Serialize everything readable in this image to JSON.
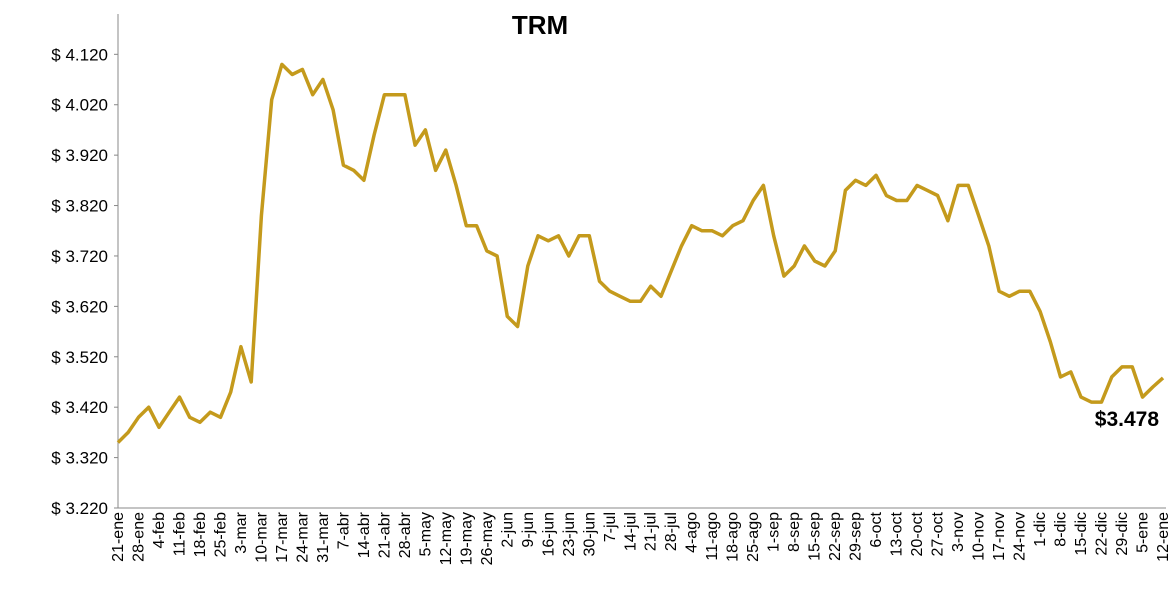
{
  "chart_data": {
    "type": "line",
    "title": "TRM",
    "annotation": "$3.478",
    "color": "#c49a1c",
    "categories": [
      "21-ene",
      null,
      "28-ene",
      null,
      "4-feb",
      null,
      "11-feb",
      null,
      "18-feb",
      null,
      "25-feb",
      null,
      "3-mar",
      null,
      "10-mar",
      null,
      "17-mar",
      null,
      "24-mar",
      null,
      "31-mar",
      null,
      "7-abr",
      null,
      "14-abr",
      null,
      "21-abr",
      null,
      "28-abr",
      null,
      "5-may",
      null,
      "12-may",
      null,
      "19-may",
      null,
      "26-may",
      null,
      "2-jun",
      null,
      "9-jun",
      null,
      "16-jun",
      null,
      "23-jun",
      null,
      "30-jun",
      null,
      "7-jul",
      null,
      "14-jul",
      null,
      "21-jul",
      null,
      "28-jul",
      null,
      "4-ago",
      null,
      "11-ago",
      null,
      "18-ago",
      null,
      "25-ago",
      null,
      "1-sep",
      null,
      "8-sep",
      null,
      "15-sep",
      null,
      "22-sep",
      null,
      "29-sep",
      null,
      "6-oct",
      null,
      "13-oct",
      null,
      "20-oct",
      null,
      "27-oct",
      null,
      "3-nov",
      null,
      "10-nov",
      null,
      "17-nov",
      null,
      "24-nov",
      null,
      "1-dic",
      null,
      "8-dic",
      null,
      "15-dic",
      null,
      "22-dic",
      null,
      "29-dic",
      null,
      "5-ene",
      null,
      "12-ene"
    ],
    "values": [
      3.35,
      3.37,
      3.4,
      3.42,
      3.38,
      3.41,
      3.44,
      3.4,
      3.39,
      3.41,
      3.4,
      3.45,
      3.54,
      3.47,
      3.8,
      4.03,
      4.1,
      4.08,
      4.09,
      4.04,
      4.07,
      4.01,
      3.9,
      3.89,
      3.87,
      3.96,
      4.04,
      4.04,
      4.04,
      3.94,
      3.97,
      3.89,
      3.93,
      3.86,
      3.78,
      3.78,
      3.73,
      3.72,
      3.6,
      3.58,
      3.7,
      3.76,
      3.75,
      3.76,
      3.72,
      3.76,
      3.76,
      3.67,
      3.65,
      3.64,
      3.63,
      3.63,
      3.66,
      3.64,
      3.69,
      3.74,
      3.78,
      3.77,
      3.77,
      3.76,
      3.78,
      3.79,
      3.83,
      3.86,
      3.76,
      3.68,
      3.7,
      3.74,
      3.71,
      3.7,
      3.73,
      3.85,
      3.87,
      3.86,
      3.88,
      3.84,
      3.83,
      3.83,
      3.86,
      3.85,
      3.84,
      3.79,
      3.86,
      3.86,
      3.8,
      3.74,
      3.65,
      3.64,
      3.65,
      3.65,
      3.61,
      3.55,
      3.48,
      3.49,
      3.44,
      3.43,
      3.43,
      3.48,
      3.5,
      3.5,
      3.44,
      3.46,
      3.478
    ],
    "ylim": [
      3.22,
      4.2
    ],
    "yticks": [
      {
        "value": 3.22,
        "label": "$ 3.220"
      },
      {
        "value": 3.32,
        "label": "$ 3.320"
      },
      {
        "value": 3.42,
        "label": "$ 3.420"
      },
      {
        "value": 3.52,
        "label": "$ 3.520"
      },
      {
        "value": 3.62,
        "label": "$ 3.620"
      },
      {
        "value": 3.72,
        "label": "$ 3.720"
      },
      {
        "value": 3.82,
        "label": "$ 3.820"
      },
      {
        "value": 3.92,
        "label": "$ 3.920"
      },
      {
        "value": 4.02,
        "label": "$ 4.020"
      },
      {
        "value": 4.12,
        "label": "$ 4.120"
      }
    ],
    "grid": false
  }
}
